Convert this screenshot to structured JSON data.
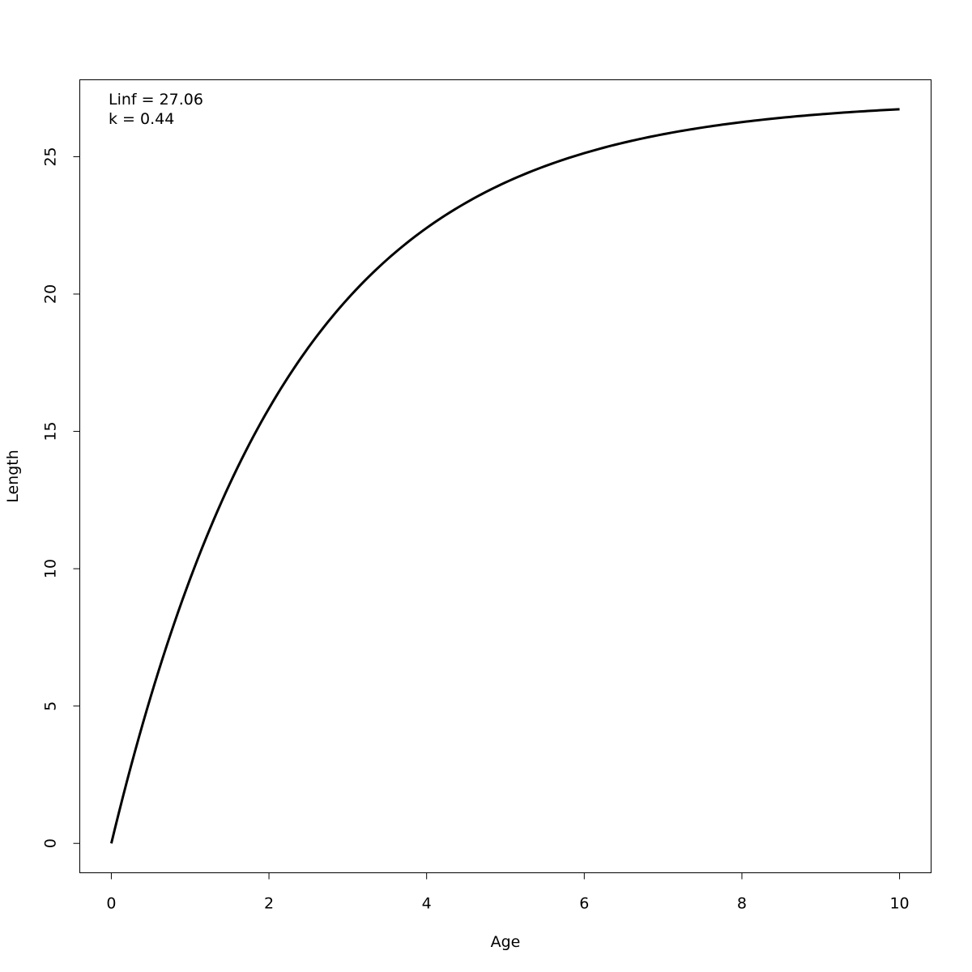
{
  "chart_data": {
    "type": "line",
    "title": "",
    "xlabel": "Age",
    "ylabel": "Length",
    "xlim": [
      -0.4,
      10.4
    ],
    "ylim": [
      -1.07,
      27.8
    ],
    "x_ticks": [
      "0",
      "2",
      "4",
      "6",
      "8",
      "10"
    ],
    "y_ticks": [
      "0",
      "5",
      "10",
      "15",
      "20",
      "25"
    ],
    "grid": false,
    "model": {
      "Linf": 27.06,
      "k": 0.44,
      "t0": 0
    },
    "annotations": [
      "Linf = 27.06",
      "k = 0.44"
    ],
    "series": [
      {
        "x": [
          0,
          1,
          2,
          3,
          4,
          5,
          6,
          7,
          8,
          9,
          10
        ],
        "y": [
          0,
          9.63,
          15.84,
          19.83,
          22.41,
          24.06,
          25.13,
          25.82,
          26.26,
          26.54,
          26.73
        ],
        "color": "#000000"
      }
    ]
  }
}
